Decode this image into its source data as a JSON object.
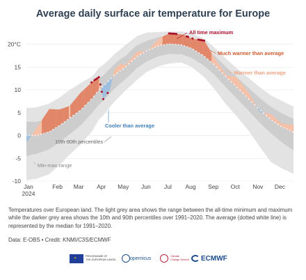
{
  "title": "Average daily surface air temperature for Europe",
  "caption": "Temperatures over European land. The light grey area shows the range between the all-time minimum and maximum while the darker grey area shows the 10th and 90th percentiles over 1991–2020. The average (dotted white line) is represented by the median for 1991–2020.",
  "credit": "Data: E-OBS • Credit: KNMI/C3S/ECMWF",
  "logos": {
    "eu_line1": "PROGRAMME OF",
    "eu_line2": "THE EUROPEAN UNION",
    "copernicus": "opernicus",
    "c3s_line1": "Climate",
    "c3s_line2": "Change Service",
    "ecmwf": "ECMWF"
  },
  "colors": {
    "min_max_band": "#e3e3e3",
    "percentile_band": "#cdcdcd",
    "median_dots": "#ffffff",
    "much_warmer": "#e2876a",
    "warmer": "#f5c1a9",
    "cooler": "#6f9ccb",
    "record": "#a8102a",
    "title": "#2f3f52"
  },
  "chart_data": {
    "type": "area",
    "year": "2024",
    "y_unit": "°C",
    "ylim": [
      -10,
      23
    ],
    "yticks": [
      -10,
      -5,
      0,
      5,
      10,
      15,
      20
    ],
    "ytick_labels": [
      "-10",
      "-5",
      "0",
      "5",
      "10",
      "15",
      "20°C"
    ],
    "xtick_labels": [
      "Jan\n2024",
      "Feb",
      "Mar",
      "Apr",
      "May",
      "Jun",
      "Jul",
      "Aug",
      "Sep",
      "Oct",
      "Nov",
      "Dec"
    ],
    "annotations": {
      "all_time_max": "All time maximum",
      "much_warmer": "Much warmer than average",
      "warmer": "Warmer than average",
      "cooler": "Cooler than average",
      "percentiles": "10th-90th percentiles",
      "min_max": "Min-max range"
    },
    "day_of_year": [
      1,
      15,
      32,
      46,
      60,
      75,
      91,
      100,
      106,
      115,
      121,
      130,
      136,
      152,
      166,
      182,
      196,
      213,
      227,
      244,
      258,
      274,
      288,
      305,
      320,
      335,
      350,
      366
    ],
    "median": [
      0.0,
      0.0,
      0.8,
      2.2,
      3.8,
      5.6,
      8.2,
      10.0,
      10.8,
      12.2,
      13.2,
      14.3,
      15.0,
      17.3,
      18.6,
      19.7,
      20.1,
      19.9,
      19.1,
      17.4,
      15.5,
      12.8,
      10.7,
      8.0,
      5.6,
      3.5,
      1.9,
      0.7
    ],
    "p10": [
      -4.5,
      -4.0,
      -3.0,
      -1.5,
      0.3,
      2.2,
      5.0,
      6.8,
      7.6,
      9.2,
      10.2,
      11.5,
      12.3,
      14.8,
      16.3,
      17.4,
      17.9,
      17.8,
      17.0,
      15.3,
      13.3,
      10.5,
      8.2,
      5.4,
      2.8,
      0.5,
      -1.5,
      -3.3
    ],
    "p90": [
      3.0,
      3.0,
      3.8,
      5.0,
      6.6,
      8.3,
      10.8,
      12.5,
      13.2,
      14.6,
      15.6,
      16.8,
      17.4,
      19.8,
      20.8,
      21.6,
      21.9,
      21.8,
      21.1,
      19.5,
      17.5,
      15.0,
      12.9,
      10.4,
      8.2,
      6.3,
      4.9,
      3.6
    ],
    "min": [
      -9.8,
      -9.5,
      -8.5,
      -6.5,
      -4.2,
      -2.0,
      1.0,
      3.5,
      4.4,
      6.2,
      7.4,
      8.8,
      9.8,
      12.2,
      14.0,
      15.2,
      15.8,
      16.0,
      15.0,
      12.8,
      10.2,
      6.8,
      4.3,
      1.0,
      -2.5,
      -5.8,
      -7.2,
      -8.4
    ],
    "max": [
      6.0,
      6.2,
      7.0,
      8.3,
      10.0,
      11.5,
      13.0,
      14.8,
      15.5,
      16.8,
      17.8,
      19.0,
      19.8,
      21.8,
      22.6,
      22.7,
      22.8,
      22.8,
      22.4,
      21.2,
      19.3,
      16.8,
      14.8,
      12.6,
      10.6,
      8.8,
      7.6,
      6.3
    ],
    "observed_2024": [
      -1.5,
      1.7,
      5.8,
      5.7,
      6.5,
      9.4,
      11.8,
      12.8,
      8.0,
      10.0,
      14.5,
      15.8,
      15.4,
      18.4,
      18.5,
      21.3,
      22.4,
      22.2,
      21.3,
      20.8,
      17.0,
      13.2,
      12.8,
      9.3,
      5.1,
      4.7,
      2.6,
      2.3
    ],
    "record_days": [
      90,
      94,
      96,
      98,
      100,
      102,
      104,
      106,
      112,
      196,
      198,
      200,
      202,
      204,
      206,
      220,
      222,
      228,
      236,
      238,
      240,
      242,
      244
    ]
  }
}
